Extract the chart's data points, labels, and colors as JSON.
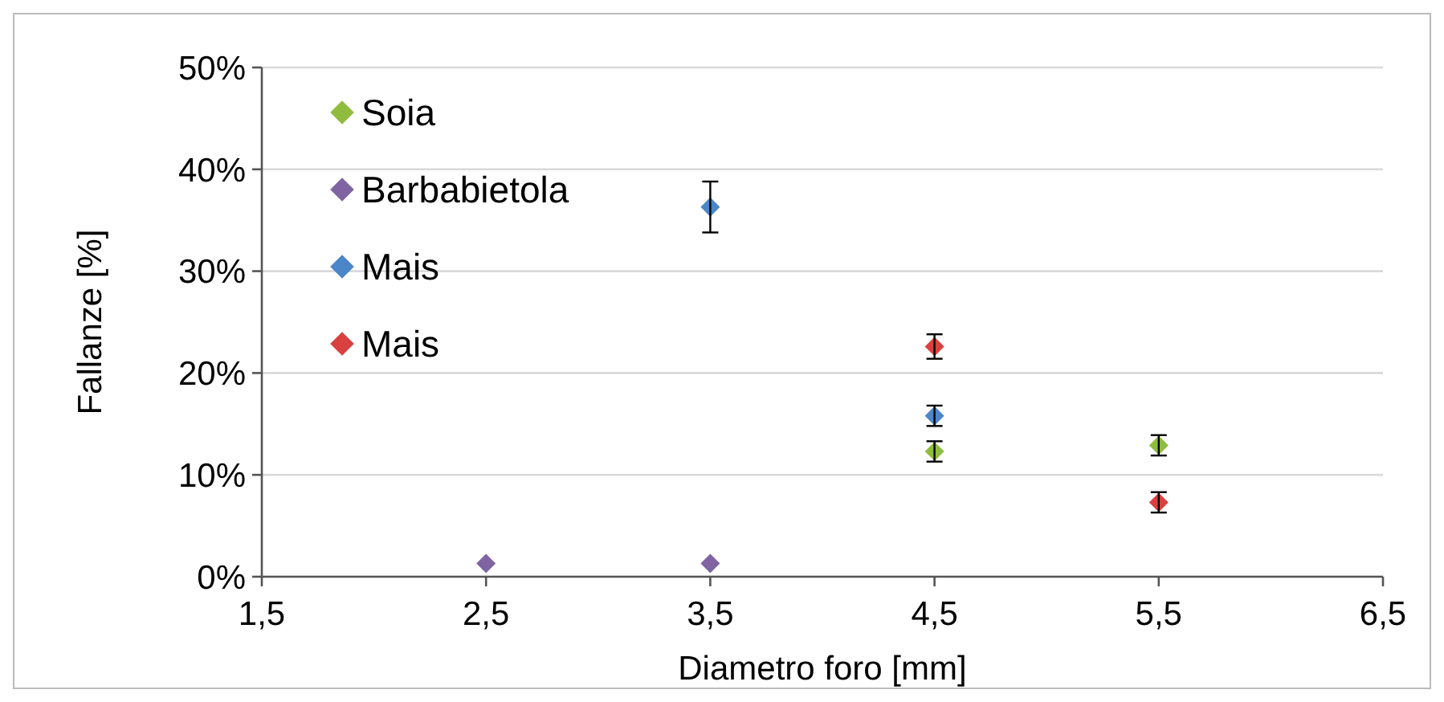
{
  "chart_data": {
    "type": "scatter",
    "xlabel": "Diametro foro [mm]",
    "ylabel": "Fallanze [%]",
    "xlim": [
      1.5,
      6.5
    ],
    "xticks": [
      {
        "value": 1.5,
        "label": "1,5"
      },
      {
        "value": 2.5,
        "label": "2,5"
      },
      {
        "value": 3.5,
        "label": "3,5"
      },
      {
        "value": 4.5,
        "label": "4,5"
      },
      {
        "value": 5.5,
        "label": "5,5"
      },
      {
        "value": 6.5,
        "label": "6,5"
      }
    ],
    "ylim": [
      0,
      50
    ],
    "yticks": [
      {
        "value": 0,
        "label": "0%"
      },
      {
        "value": 10,
        "label": "10%"
      },
      {
        "value": 20,
        "label": "20%"
      },
      {
        "value": 30,
        "label": "30%"
      },
      {
        "value": 40,
        "label": "40%"
      },
      {
        "value": 50,
        "label": "50%"
      }
    ],
    "grid": "y",
    "legend": "top left",
    "marker": "diamond",
    "series": [
      {
        "name": "Soia",
        "color": "#8fbc3f",
        "x": [
          4.5,
          5.5
        ],
        "values": [
          12.3,
          12.9
        ],
        "errors": [
          1,
          1
        ]
      },
      {
        "name": "Barbabietola",
        "color": "#8064a2",
        "x": [
          2.5,
          3.5
        ],
        "values": [
          1.3,
          1.3
        ]
      },
      {
        "name": "Mais",
        "color": "#4a86c8",
        "x": [
          3.5,
          4.5
        ],
        "values": [
          36.3,
          15.8
        ],
        "errors": [
          2.5,
          1
        ]
      },
      {
        "name": "Mais",
        "color": "#d9413f",
        "x": [
          4.5,
          5.5
        ],
        "values": [
          22.6,
          7.3
        ],
        "errors": [
          1.2,
          1
        ]
      }
    ]
  }
}
